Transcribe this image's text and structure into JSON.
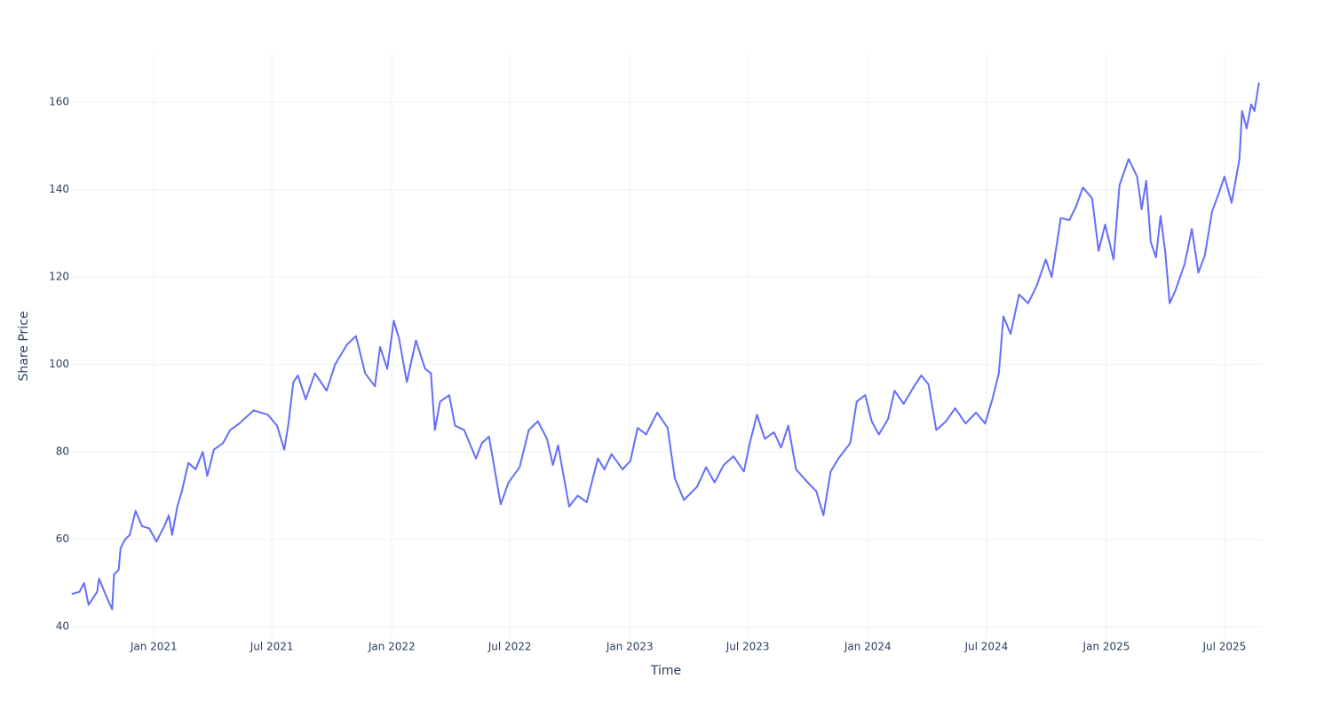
{
  "chart_data": {
    "type": "line",
    "xlabel": "Time",
    "ylabel": "Share Price",
    "xlim": [
      "2020-08-27",
      "2025-08-26"
    ],
    "xticks": [
      {
        "value": "2021-01-01",
        "label": "Jan 2021"
      },
      {
        "value": "2021-07-01",
        "label": "Jul 2021"
      },
      {
        "value": "2022-01-01",
        "label": "Jan 2022"
      },
      {
        "value": "2022-07-01",
        "label": "Jul 2022"
      },
      {
        "value": "2023-01-01",
        "label": "Jan 2023"
      },
      {
        "value": "2023-07-01",
        "label": "Jul 2023"
      },
      {
        "value": "2024-01-01",
        "label": "Jan 2024"
      },
      {
        "value": "2024-07-01",
        "label": "Jul 2024"
      },
      {
        "value": "2025-01-01",
        "label": "Jan 2025"
      },
      {
        "value": "2025-07-01",
        "label": "Jul 2025"
      }
    ],
    "ylim": [
      37.2,
      171.2
    ],
    "yticks": [
      40,
      60,
      80,
      100,
      120,
      140,
      160
    ],
    "grid": true,
    "x": [
      "2020-08-28",
      "2020-09-09",
      "2020-09-16",
      "2020-09-23",
      "2020-10-06",
      "2020-10-09",
      "2020-10-20",
      "2020-10-29",
      "2020-11-01",
      "2020-11-08",
      "2020-11-11",
      "2020-11-18",
      "2020-11-25",
      "2020-12-04",
      "2020-12-14",
      "2020-12-25",
      "2021-01-05",
      "2021-01-17",
      "2021-01-24",
      "2021-01-29",
      "2021-02-06",
      "2021-02-13",
      "2021-02-23",
      "2021-03-06",
      "2021-03-17",
      "2021-03-24",
      "2021-04-03",
      "2021-04-17",
      "2021-04-28",
      "2021-05-12",
      "2021-06-03",
      "2021-06-25",
      "2021-07-09",
      "2021-07-20",
      "2021-07-26",
      "2021-08-03",
      "2021-08-10",
      "2021-08-22",
      "2021-09-05",
      "2021-09-23",
      "2021-10-06",
      "2021-10-24",
      "2021-11-07",
      "2021-11-21",
      "2021-12-06",
      "2021-12-14",
      "2021-12-25",
      "2022-01-04",
      "2022-01-12",
      "2022-01-24",
      "2022-02-07",
      "2022-02-21",
      "2022-03-02",
      "2022-03-08",
      "2022-03-16",
      "2022-03-30",
      "2022-04-08",
      "2022-04-22",
      "2022-05-10",
      "2022-05-19",
      "2022-05-30",
      "2022-06-17",
      "2022-06-29",
      "2022-07-16",
      "2022-07-30",
      "2022-08-13",
      "2022-08-27",
      "2022-09-05",
      "2022-09-13",
      "2022-09-30",
      "2022-10-13",
      "2022-10-27",
      "2022-11-13",
      "2022-11-23",
      "2022-12-04",
      "2022-12-21",
      "2023-01-02",
      "2023-01-13",
      "2023-01-26",
      "2023-02-12",
      "2023-02-28",
      "2023-03-11",
      "2023-03-25",
      "2023-04-14",
      "2023-04-28",
      "2023-05-11",
      "2023-05-25",
      "2023-06-09",
      "2023-06-25",
      "2023-07-04",
      "2023-07-15",
      "2023-07-27",
      "2023-08-10",
      "2023-08-21",
      "2023-09-01",
      "2023-09-13",
      "2023-10-01",
      "2023-10-14",
      "2023-10-25",
      "2023-11-05",
      "2023-11-17",
      "2023-12-05",
      "2023-12-15",
      "2023-12-28",
      "2024-01-07",
      "2024-01-18",
      "2024-02-01",
      "2024-02-11",
      "2024-02-25",
      "2024-03-12",
      "2024-03-23",
      "2024-04-03",
      "2024-04-15",
      "2024-04-30",
      "2024-05-14",
      "2024-05-30",
      "2024-06-15",
      "2024-06-29",
      "2024-07-10",
      "2024-07-20",
      "2024-07-27",
      "2024-08-07",
      "2024-08-20",
      "2024-09-03",
      "2024-09-16",
      "2024-09-30",
      "2024-10-09",
      "2024-10-23",
      "2024-11-05",
      "2024-11-15",
      "2024-11-26",
      "2024-12-10",
      "2024-12-20",
      "2024-12-30",
      "2025-01-12",
      "2025-01-21",
      "2025-02-04",
      "2025-02-17",
      "2025-02-24",
      "2025-03-03",
      "2025-03-10",
      "2025-03-18",
      "2025-03-25",
      "2025-04-01",
      "2025-04-08",
      "2025-04-17",
      "2025-05-01",
      "2025-05-12",
      "2025-05-22",
      "2025-06-01",
      "2025-06-12",
      "2025-06-22",
      "2025-07-01",
      "2025-07-12",
      "2025-07-24",
      "2025-07-28",
      "2025-08-04",
      "2025-08-11",
      "2025-08-16",
      "2025-08-23"
    ],
    "series": [
      {
        "color": "#636efa",
        "values": [
          47.5,
          48,
          50,
          45,
          48,
          51,
          47,
          44,
          52,
          53,
          58,
          60,
          61,
          66.5,
          63,
          62.5,
          59.5,
          63,
          65.5,
          61,
          67.5,
          71,
          77.5,
          76,
          80,
          74.5,
          80.5,
          82,
          85,
          86.5,
          89.5,
          88.5,
          86,
          80.5,
          86,
          96,
          97.5,
          92,
          98,
          94,
          100,
          104.5,
          106.5,
          98,
          95,
          104,
          99,
          110,
          106,
          96,
          105.5,
          99,
          98,
          85,
          91.5,
          93,
          86,
          85,
          78.5,
          82,
          83.5,
          68,
          73,
          76.5,
          85,
          87,
          83,
          77,
          81.5,
          67.5,
          70,
          68.5,
          78.5,
          76,
          79.5,
          76,
          78,
          85.5,
          84,
          89,
          85.5,
          74,
          69,
          72,
          76.5,
          73,
          77,
          79,
          75.5,
          82,
          88.5,
          83,
          84.5,
          81,
          86,
          76,
          73,
          71,
          65.5,
          75.5,
          78.5,
          82,
          91.5,
          93,
          87,
          84,
          87.5,
          94,
          91,
          95,
          97.5,
          95.5,
          85,
          87,
          90,
          86.5,
          89,
          86.5,
          92,
          98,
          111,
          107,
          116,
          114,
          118,
          124,
          120,
          133.5,
          133,
          136,
          140.5,
          138,
          126,
          132,
          124,
          141,
          147,
          143,
          135.5,
          142,
          128,
          124.5,
          134,
          126,
          114,
          117,
          123,
          131,
          121,
          125,
          135,
          139,
          143,
          137,
          147,
          158,
          154,
          159.5,
          158,
          164.5
        ]
      }
    ]
  }
}
